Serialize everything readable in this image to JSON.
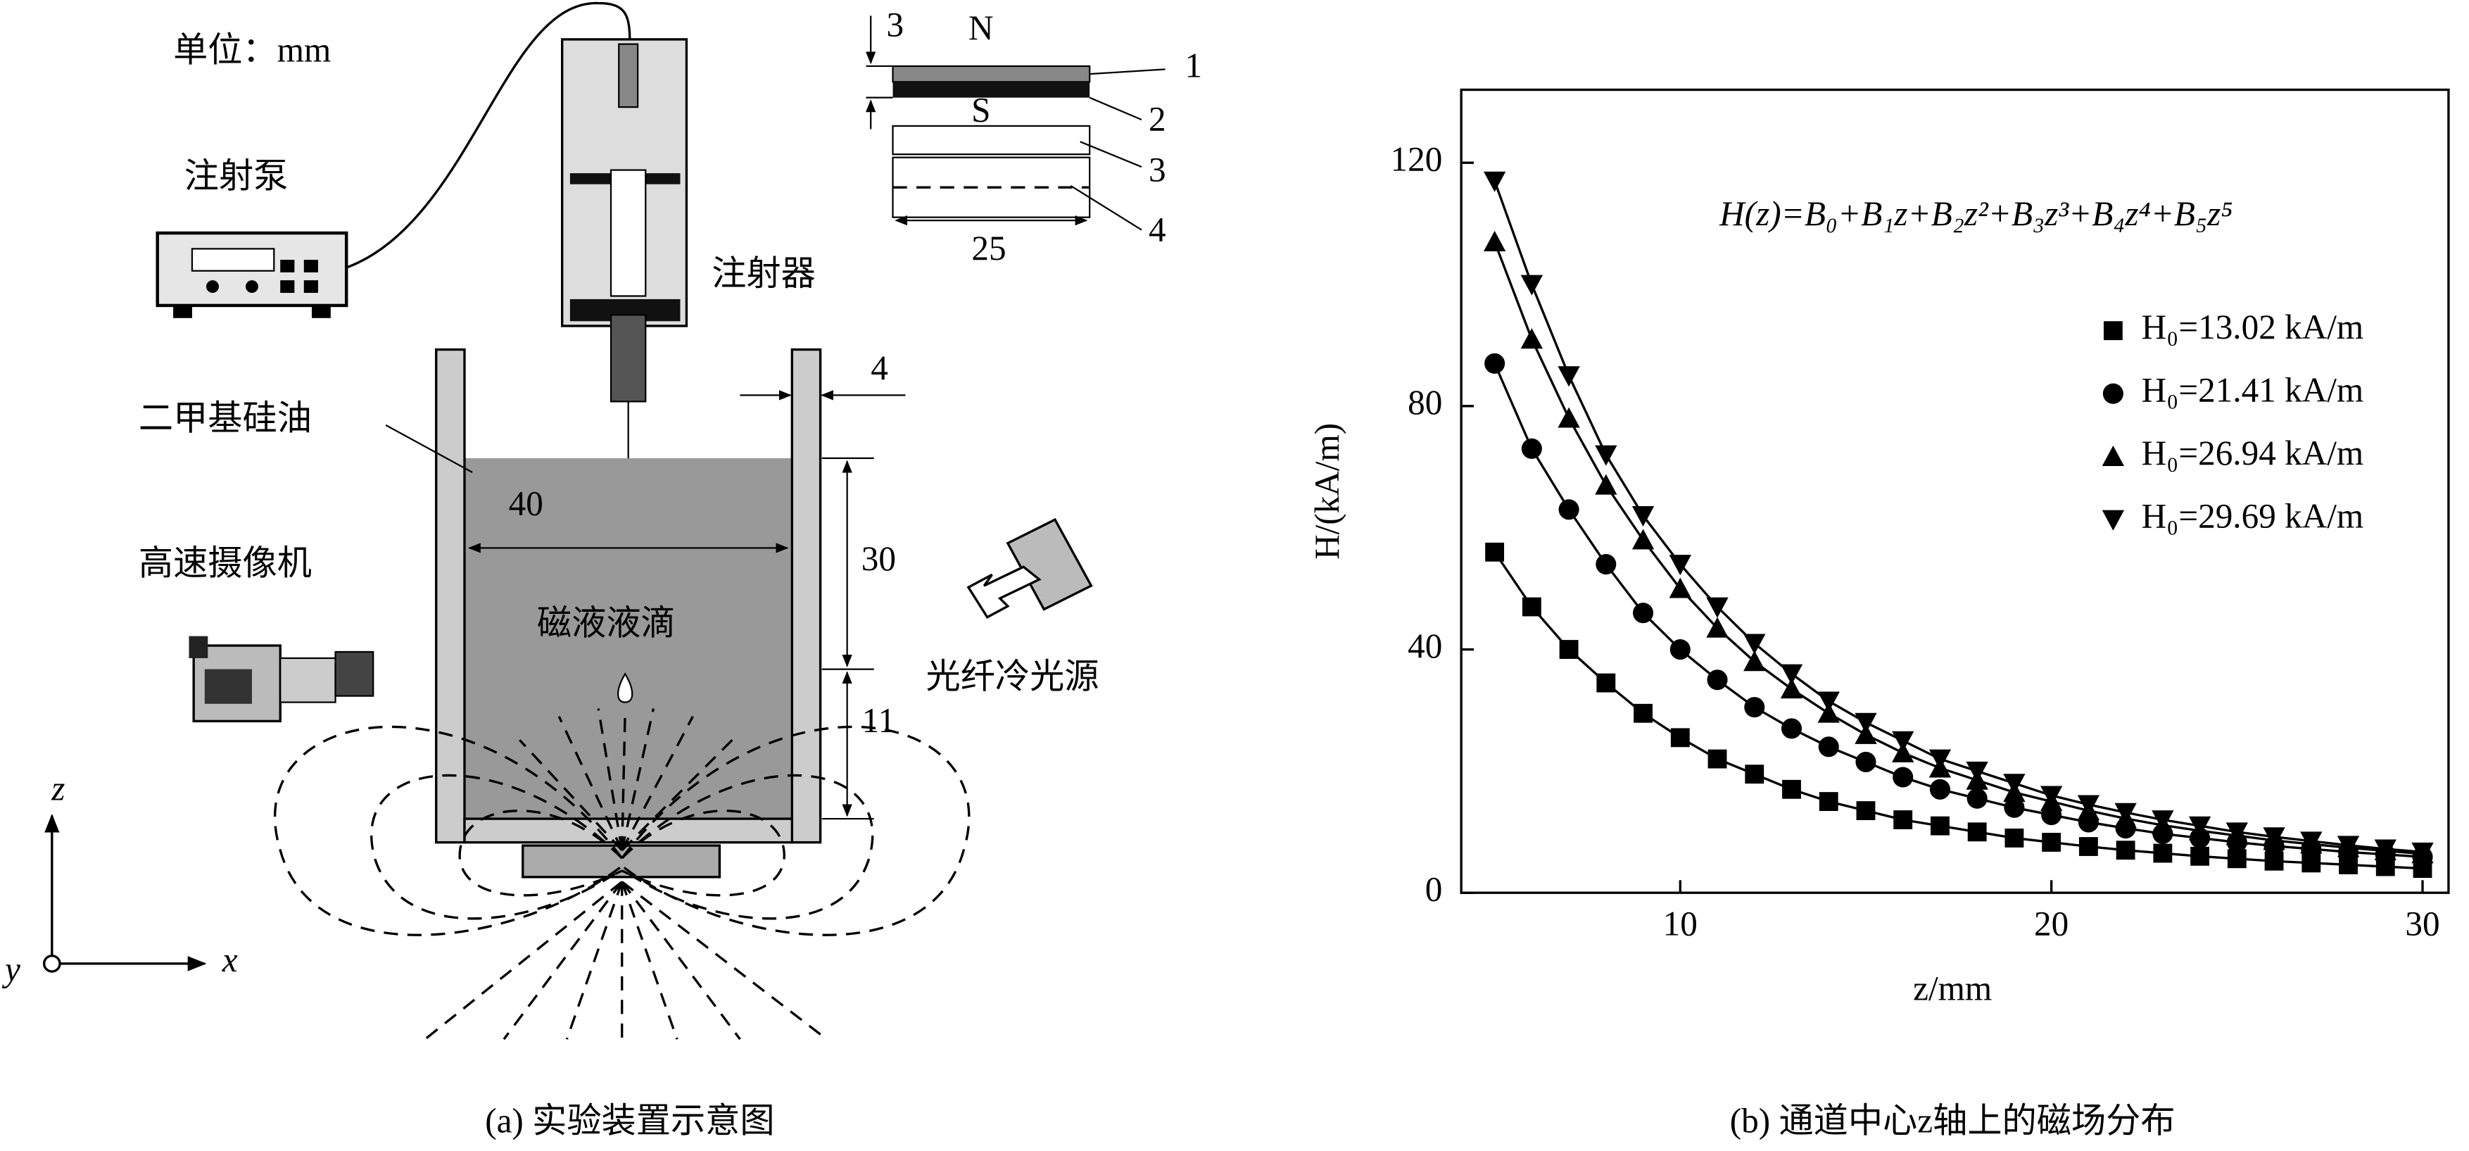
{
  "diagram": {
    "unit": "单位：mm",
    "pump": "注射泵",
    "syringe": "注射器",
    "oil": "二甲基硅油",
    "camera": "高速摄像机",
    "droplet": "磁液液滴",
    "light": "光纤冷光源",
    "dim_width": "40",
    "dim_oil_height": "30",
    "dim_gap": "11",
    "dim_wall": "4",
    "dim_magnet_thickness": "3",
    "dim_magnet_width": "25",
    "pole_n": "N",
    "pole_s": "S",
    "part_labels": [
      "1",
      "2",
      "3",
      "4"
    ],
    "axis_z": "z",
    "axis_x": "x",
    "axis_y": "y",
    "caption": "(a) 实验装置示意图"
  },
  "chart_data": {
    "type": "line",
    "caption": "(b) 通道中心z轴上的磁场分布",
    "annotation": "H(z)=B₀+B₁z+B₂z²+B₃z³+B₄z⁴+B₅z⁵",
    "x_label": "z/mm",
    "y_label": "H/(kA/m)",
    "x": [
      5,
      6,
      7,
      8,
      9,
      10,
      11,
      12,
      13,
      14,
      15,
      16,
      17,
      18,
      19,
      20,
      21,
      22,
      23,
      24,
      25,
      26,
      27,
      28,
      29,
      30
    ],
    "xlim": [
      4.1,
      30.7
    ],
    "ylim": [
      0,
      132
    ],
    "xticks": [
      10,
      20,
      30
    ],
    "yticks": [
      0,
      40,
      80,
      120
    ],
    "series": [
      {
        "name": "H₀=13.02 kA/m",
        "color": "#000000",
        "marker": "square",
        "values": [
          56,
          47,
          40,
          34.5,
          29.5,
          25.5,
          22,
          19.5,
          17,
          15,
          13.5,
          12,
          11,
          10,
          9,
          8.3,
          7.6,
          7,
          6.5,
          6,
          5.6,
          5.2,
          4.9,
          4.6,
          4.3,
          4.0
        ]
      },
      {
        "name": "H₀=21.41 kA/m",
        "color": "#000000",
        "marker": "circle",
        "values": [
          87,
          73,
          63,
          54,
          46,
          40,
          35,
          30.5,
          27,
          24,
          21.5,
          19,
          17,
          15.5,
          14,
          12.8,
          11.6,
          10.6,
          9.7,
          9,
          8.3,
          7.7,
          7.2,
          6.7,
          6.3,
          5.9
        ]
      },
      {
        "name": "H₀=26.94 kA/m",
        "color": "#000000",
        "marker": "triangle-up",
        "values": [
          107,
          91,
          78,
          67,
          58,
          50,
          43.5,
          38,
          33.5,
          29.5,
          26,
          23,
          20.5,
          18.5,
          16.5,
          15,
          13.5,
          12.2,
          11.1,
          10.2,
          9.4,
          8.6,
          8,
          7.4,
          6.9,
          6.4
        ]
      },
      {
        "name": "H₀=29.69 kA/m",
        "color": "#000000",
        "marker": "triangle-down",
        "values": [
          117,
          100,
          85,
          72,
          62,
          54,
          47,
          41,
          36,
          31.5,
          28,
          25,
          22,
          20,
          18,
          16,
          14.5,
          13.2,
          12,
          11,
          10,
          9.2,
          8.5,
          7.8,
          7.2,
          6.7
        ]
      }
    ]
  }
}
